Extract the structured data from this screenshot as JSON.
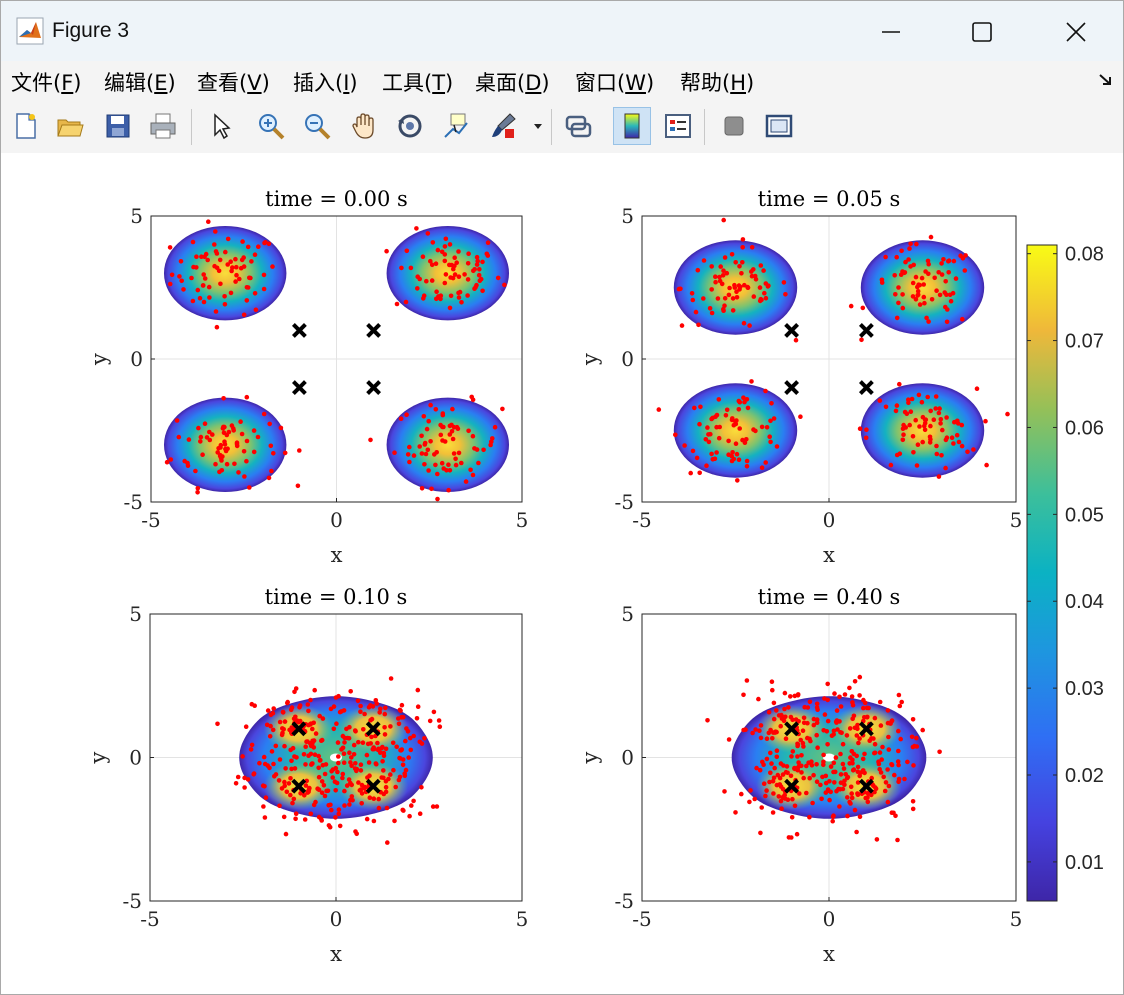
{
  "window": {
    "title": "Figure 3",
    "minimize_icon": "minimize-icon",
    "maximize_icon": "maximize-icon",
    "close_icon": "close-icon"
  },
  "menu": {
    "items": [
      {
        "label": "文件(",
        "key": "F",
        "tail": ")"
      },
      {
        "label": "编辑(",
        "key": "E",
        "tail": ")"
      },
      {
        "label": "查看(",
        "key": "V",
        "tail": ")"
      },
      {
        "label": "插入(",
        "key": "I",
        "tail": ")"
      },
      {
        "label": "工具(",
        "key": "T",
        "tail": ")"
      },
      {
        "label": "桌面(",
        "key": "D",
        "tail": ")"
      },
      {
        "label": "窗口(",
        "key": "W",
        "tail": ")"
      },
      {
        "label": "帮助(",
        "key": "H",
        "tail": ")"
      }
    ],
    "overflow_icon": "overflow-arrow-icon"
  },
  "toolbar": {
    "buttons": [
      "new-figure-icon",
      "open-file-icon",
      "save-icon",
      "print-icon",
      "pointer-icon",
      "zoom-in-icon",
      "zoom-out-icon",
      "pan-icon",
      "rotate-icon",
      "data-cursor-icon",
      "brush-icon",
      "link-icon",
      "colorbar-icon",
      "legend-icon",
      "hide-plot-tools-icon",
      "show-plot-tools-icon"
    ]
  },
  "chart_data": [
    {
      "type": "scatter",
      "title": "time = 0.00 s",
      "xlabel": "x",
      "ylabel": "y",
      "xlim": [
        -5,
        5
      ],
      "ylim": [
        -5,
        5
      ],
      "xticks": [
        "-5",
        "0",
        "5"
      ],
      "yticks": [
        "-5",
        "0",
        "5"
      ],
      "grid": true,
      "density_blobs": [
        [
          -3,
          3
        ],
        [
          3,
          3
        ],
        [
          -3,
          -3
        ],
        [
          3,
          -3
        ]
      ],
      "blob_radius": 1.65,
      "markers": [
        [
          -1,
          1
        ],
        [
          1,
          1
        ],
        [
          -1,
          -1
        ],
        [
          1,
          -1
        ]
      ]
    },
    {
      "type": "scatter",
      "title": "time = 0.05 s",
      "xlabel": "x",
      "ylabel": "y",
      "xlim": [
        -5,
        5
      ],
      "ylim": [
        -5,
        5
      ],
      "xticks": [
        "-5",
        "0",
        "5"
      ],
      "yticks": [
        "-5",
        "0",
        "5"
      ],
      "grid": true,
      "density_blobs": [
        [
          -2.5,
          2.5
        ],
        [
          2.5,
          2.5
        ],
        [
          -2.5,
          -2.5
        ],
        [
          2.5,
          -2.5
        ]
      ],
      "blob_radius": 1.65,
      "markers": [
        [
          -1,
          1
        ],
        [
          1,
          1
        ],
        [
          -1,
          -1
        ],
        [
          1,
          -1
        ]
      ]
    },
    {
      "type": "scatter",
      "title": "time = 0.10 s",
      "xlabel": "x",
      "ylabel": "y",
      "xlim": [
        -5,
        5
      ],
      "ylim": [
        -5,
        5
      ],
      "xticks": [
        "-5",
        "0",
        "5"
      ],
      "yticks": [
        "-5",
        "0",
        "5"
      ],
      "grid": true,
      "density_blobs": [
        [
          -1,
          1
        ],
        [
          1,
          1
        ],
        [
          -1,
          -1
        ],
        [
          1,
          -1
        ]
      ],
      "blob_radius": 1.7,
      "markers": [
        [
          -1,
          1
        ],
        [
          1,
          1
        ],
        [
          -1,
          -1
        ],
        [
          1,
          -1
        ]
      ]
    },
    {
      "type": "scatter",
      "title": "time = 0.40 s",
      "xlabel": "x",
      "ylabel": "y",
      "xlim": [
        -5,
        5
      ],
      "ylim": [
        -5,
        5
      ],
      "xticks": [
        "-5",
        "0",
        "5"
      ],
      "yticks": [
        "-5",
        "0",
        "5"
      ],
      "grid": true,
      "density_blobs": [
        [
          -1,
          1
        ],
        [
          1,
          1
        ],
        [
          -1,
          -1
        ],
        [
          1,
          -1
        ]
      ],
      "blob_radius": 1.7,
      "markers": [
        [
          -1,
          1
        ],
        [
          1,
          1
        ],
        [
          -1,
          -1
        ],
        [
          1,
          -1
        ]
      ]
    }
  ],
  "colorbar": {
    "ticks": [
      "0.08",
      "0.07",
      "0.06",
      "0.05",
      "0.04",
      "0.03",
      "0.02",
      "0.01"
    ],
    "tick_values": [
      0.08,
      0.07,
      0.06,
      0.05,
      0.04,
      0.03,
      0.02,
      0.01
    ],
    "range": [
      0.0055,
      0.081
    ],
    "colormap": "parula"
  },
  "colors": {
    "particle": "#ff0000",
    "marker": "#000000",
    "parula_low": "#3e26a8",
    "parula_mid": "#2ab7bb",
    "parula_high": "#f9fb15"
  }
}
